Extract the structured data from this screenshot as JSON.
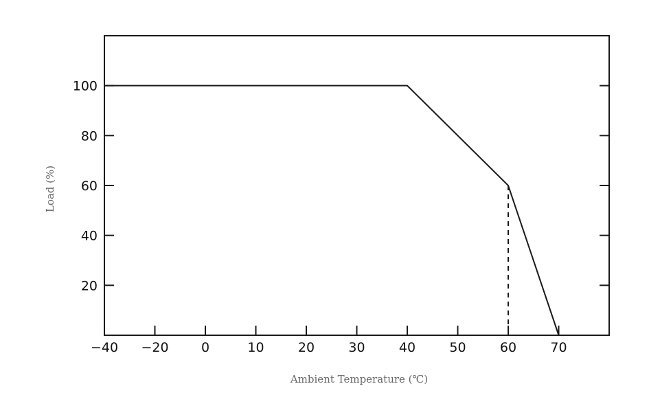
{
  "chart_data": {
    "type": "line",
    "title": "",
    "xlabel": "Ambient Temperature (℃)",
    "ylabel": "Load (%)",
    "xlim": [
      -40,
      80
    ],
    "ylim": [
      0,
      120
    ],
    "x_ticks": [
      -40,
      -20,
      0,
      10,
      20,
      30,
      40,
      50,
      60,
      70
    ],
    "x_tick_labels": [
      "−40",
      "−20",
      "0",
      "10",
      "20",
      "30",
      "40",
      "50",
      "60",
      "70"
    ],
    "y_ticks": [
      20,
      40,
      60,
      80,
      100
    ],
    "y_tick_labels": [
      "20",
      "40",
      "60",
      "80",
      "100"
    ],
    "grid": false,
    "legend": "none",
    "series": [
      {
        "x": [
          -40,
          40,
          60,
          70
        ],
        "y": [
          100,
          100,
          60,
          0
        ],
        "color": "#1a1a1a"
      }
    ],
    "reference_lines": [
      {
        "style": "dashed",
        "x": [
          60,
          60
        ],
        "y": [
          60,
          0
        ]
      }
    ]
  }
}
